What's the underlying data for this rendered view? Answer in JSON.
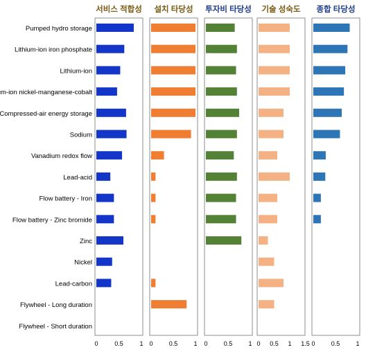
{
  "chart_data": {
    "type": "bar",
    "orientation": "horizontal",
    "categories": [
      "Pumped hydro storage",
      "Lithium-ion iron phosphate",
      "Lithium-ion",
      "Lithium-ion nickel-manganese-cobalt",
      "Compressed-air energy storage",
      "Sodium",
      "Vanadium redox flow",
      "Lead-acid",
      "Flow battery - Iron",
      "Flow battery - Zinc bromide",
      "Zinc",
      "Nickel",
      "Lead-carbon",
      "Flywheel - Long duration",
      "Flywheel - Short duration"
    ],
    "panels": [
      {
        "title": "서비스 적합성",
        "title_color": "#7a5a12",
        "color": "#1436c8",
        "xlim": [
          0,
          1
        ],
        "ticks": [
          "0",
          "0.5",
          "1"
        ],
        "tick_values": [
          0,
          0.5,
          1
        ],
        "values": [
          0.83,
          0.62,
          0.53,
          0.46,
          0.66,
          0.67,
          0.57,
          0.31,
          0.39,
          0.39,
          0.6,
          0.35,
          0.33,
          null,
          null
        ]
      },
      {
        "title": "설치 타당성",
        "title_color": "#7a5a12",
        "color": "#ef7d32",
        "xlim": [
          0,
          1
        ],
        "ticks": [
          "0",
          "0.5",
          "1"
        ],
        "tick_values": [
          0,
          0.5,
          1
        ],
        "values": [
          1.0,
          1.0,
          1.0,
          1.0,
          1.0,
          0.9,
          0.29,
          0.1,
          0.1,
          0.1,
          null,
          null,
          0.1,
          0.8,
          null
        ]
      },
      {
        "title": "투자비 타당성",
        "title_color": "#1f3d8a",
        "color": "#538135",
        "xlim": [
          0,
          1
        ],
        "ticks": [
          "0",
          "0.5",
          "1"
        ],
        "tick_values": [
          0,
          0.5,
          1
        ],
        "values": [
          0.65,
          0.7,
          0.68,
          0.7,
          0.75,
          0.7,
          0.63,
          0.7,
          0.68,
          0.68,
          0.8,
          null,
          null,
          null,
          null
        ]
      },
      {
        "title": "기술 성숙도",
        "title_color": "#7a5a12",
        "color": "#f4b183",
        "xlim": [
          0,
          1.5
        ],
        "ticks": [
          "0",
          "0.5",
          "1",
          "1.5"
        ],
        "tick_values": [
          0,
          0.5,
          1,
          1.5
        ],
        "values": [
          1.0,
          1.0,
          1.0,
          1.0,
          0.8,
          0.8,
          0.6,
          1.0,
          0.6,
          0.6,
          0.3,
          0.5,
          0.8,
          0.5,
          null
        ]
      },
      {
        "title": "종합 타당성",
        "title_color": "#1f3d8a",
        "color": "#2e75b6",
        "xlim": [
          0,
          1
        ],
        "ticks": [
          "0",
          "0.5",
          "1"
        ],
        "tick_values": [
          0,
          0.5,
          1
        ],
        "values": [
          0.82,
          0.77,
          0.72,
          0.69,
          0.64,
          0.6,
          0.28,
          0.27,
          0.17,
          0.17,
          null,
          null,
          null,
          null,
          null
        ]
      }
    ]
  }
}
